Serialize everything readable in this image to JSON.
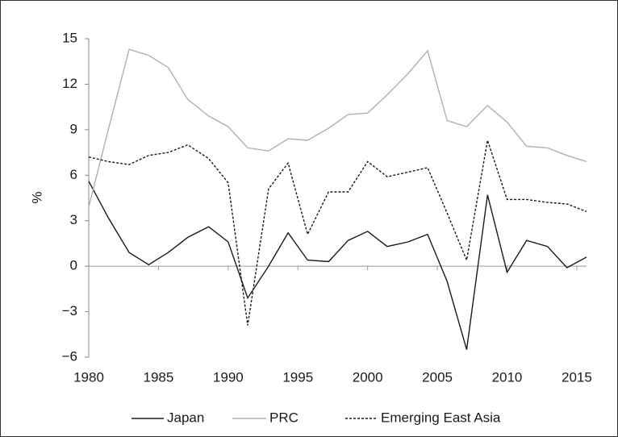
{
  "chart_data": {
    "type": "line",
    "y_label": "%",
    "x": [
      1980,
      1981.4,
      1982.9,
      1984.3,
      1985.7,
      1987.1,
      1988.6,
      1990.0,
      1991.4,
      1992.9,
      1994.3,
      1995.7,
      1997.2,
      1998.6,
      2000.0,
      2001.4,
      2002.9,
      2004.3,
      2005.7,
      2007.1,
      2008.6,
      2010.0,
      2011.4,
      2012.9,
      2014.3,
      2015.7
    ],
    "series": [
      {
        "name": "Japan",
        "color": "#1a1a1a",
        "dash": "solid",
        "values": [
          5.6,
          3.2,
          0.9,
          0.1,
          0.9,
          1.9,
          2.6,
          1.6,
          -2.1,
          0.0,
          2.2,
          0.4,
          0.3,
          1.7,
          2.3,
          1.3,
          1.6,
          2.1,
          -1.0,
          -5.5,
          4.7,
          -0.4,
          1.7,
          1.3,
          -0.1,
          0.6
        ]
      },
      {
        "name": "PRC",
        "color": "#b0b0b0",
        "dash": "solid",
        "values": [
          3.9,
          9.0,
          14.3,
          13.9,
          13.1,
          11.0,
          9.9,
          9.2,
          7.8,
          7.6,
          8.4,
          8.3,
          9.1,
          10.0,
          10.1,
          11.3,
          12.7,
          14.2,
          9.6,
          9.2,
          10.6,
          9.5,
          7.9,
          7.8,
          7.3,
          6.9
        ]
      },
      {
        "name": "Emerging East Asia",
        "color": "#1a1a1a",
        "dash": "dashed",
        "values": [
          7.2,
          6.9,
          6.7,
          7.3,
          7.5,
          8.0,
          7.1,
          5.5,
          -3.9,
          5.1,
          6.8,
          2.1,
          4.9,
          4.9,
          6.9,
          5.9,
          6.2,
          6.5,
          3.5,
          0.4,
          8.3,
          4.4,
          4.4,
          4.2,
          4.1,
          3.6
        ]
      }
    ],
    "xlim": [
      1980,
      2015.7
    ],
    "xticks": [
      1980,
      1985,
      1990,
      1995,
      2000,
      2005,
      2010,
      2015
    ],
    "ylim": [
      -6,
      15
    ],
    "yticks": [
      {
        "value": -6,
        "label": "−6"
      },
      {
        "value": -3,
        "label": "−3"
      },
      0,
      3,
      6,
      9,
      12,
      15
    ],
    "legend": "bottom"
  }
}
